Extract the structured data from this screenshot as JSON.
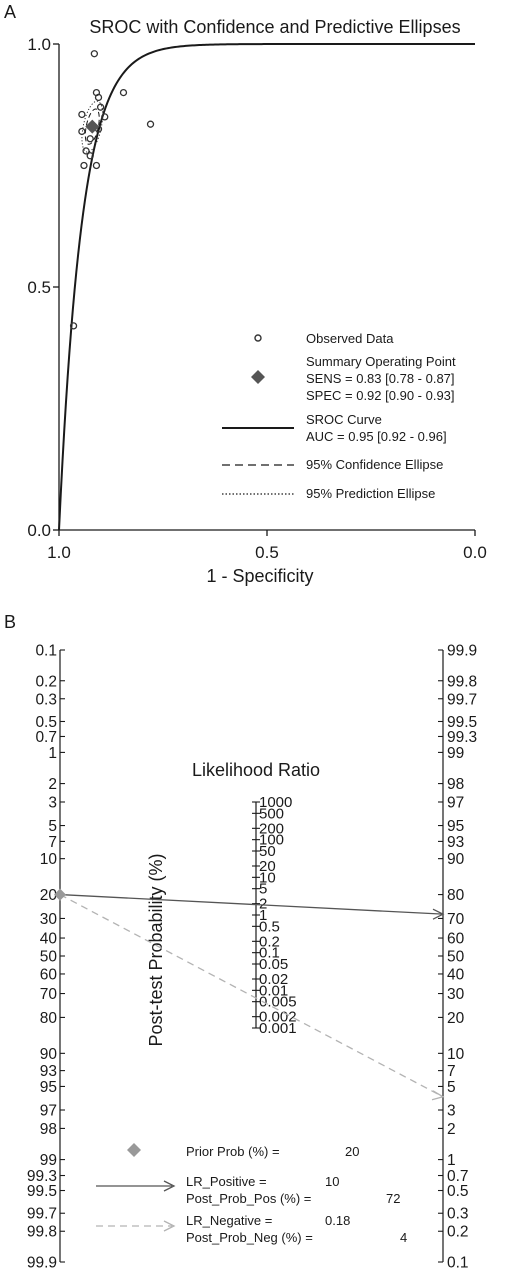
{
  "panels": {
    "a": {
      "letter": "A"
    },
    "b": {
      "letter": "B"
    }
  },
  "chart_data": [
    {
      "type": "scatter",
      "title": "SROC with Confidence and Predictive Ellipses",
      "xlabel": "1 - Specificity",
      "ylabel": "",
      "xlim": [
        1.0,
        0.0
      ],
      "ylim": [
        0.0,
        1.0
      ],
      "x_reversed": true,
      "x_tick_labels": [
        "1.0",
        "0.5",
        "0.0"
      ],
      "y_tick_labels": [
        "0.0",
        "0.5",
        "1.0"
      ],
      "grid": false,
      "legend_position": "bottom-right",
      "observed_data": [
        {
          "x": 0.915,
          "y": 0.98
        },
        {
          "x": 0.91,
          "y": 0.9
        },
        {
          "x": 0.845,
          "y": 0.9
        },
        {
          "x": 0.905,
          "y": 0.89
        },
        {
          "x": 0.9,
          "y": 0.87
        },
        {
          "x": 0.945,
          "y": 0.855
        },
        {
          "x": 0.89,
          "y": 0.85
        },
        {
          "x": 0.78,
          "y": 0.835
        },
        {
          "x": 0.905,
          "y": 0.825
        },
        {
          "x": 0.945,
          "y": 0.82
        },
        {
          "x": 0.925,
          "y": 0.805
        },
        {
          "x": 0.935,
          "y": 0.78
        },
        {
          "x": 0.925,
          "y": 0.77
        },
        {
          "x": 0.91,
          "y": 0.75
        },
        {
          "x": 0.94,
          "y": 0.75
        },
        {
          "x": 0.965,
          "y": 0.42
        }
      ],
      "summary_point": {
        "x": 0.92,
        "y": 0.83
      },
      "sroc_shape_b": 0.055,
      "legend": {
        "observed": "Observed Data",
        "summary_line1": "Summary Operating Point",
        "summary_line2": "SENS = 0.83 [0.78 - 0.87]",
        "summary_line3": "SPEC = 0.92 [0.90 - 0.93]",
        "sroc_line1": "SROC Curve",
        "sroc_line2": "AUC = 0.95 [0.92 - 0.96]",
        "confidence": "95% Confidence Ellipse",
        "prediction": "95% Prediction Ellipse"
      },
      "colors": {
        "curve": "#1a1a1a",
        "summary": "#555555",
        "points": "#333333"
      }
    },
    {
      "type": "nomogram",
      "title": "",
      "left_axis_label": "",
      "middle_axis_title": "Likelihood Ratio",
      "right_axis_label": "Post-test Probability (%)",
      "left_ticks": [
        "0.1",
        "0.2",
        "0.3",
        "0.5",
        "0.7",
        "1",
        "2",
        "3",
        "5",
        "7",
        "10",
        "20",
        "30",
        "40",
        "50",
        "60",
        "70",
        "80",
        "90",
        "93",
        "95",
        "97",
        "98",
        "99",
        "99.3",
        "99.5",
        "99.7",
        "99.8",
        "99.9"
      ],
      "right_ticks": [
        "99.9",
        "99.8",
        "99.7",
        "99.5",
        "99.3",
        "99",
        "98",
        "97",
        "95",
        "93",
        "90",
        "80",
        "70",
        "60",
        "50",
        "40",
        "30",
        "20",
        "10",
        "7",
        "5",
        "3",
        "2",
        "1",
        "0.7",
        "0.5",
        "0.3",
        "0.2",
        "0.1"
      ],
      "middle_ticks": [
        "1000",
        "500",
        "200",
        "100",
        "50",
        "20",
        "10",
        "5",
        "2",
        "1",
        "0.5",
        "0.2",
        "0.1",
        "0.05",
        "0.02",
        "0.01",
        "0.005",
        "0.002",
        "0.001"
      ],
      "prior_prob": 20,
      "lr_positive": 10,
      "post_prob_pos": 72,
      "lr_negative": 0.18,
      "post_prob_neg": 4,
      "legend": {
        "prior_label": "Prior Prob (%) =",
        "prior_value": "20",
        "lr_pos_label": "LR_Positive =",
        "lr_pos_value": "10",
        "post_pos_label": "Post_Prob_Pos (%) =",
        "post_pos_value": "72",
        "lr_neg_label": "LR_Negative =",
        "lr_neg_value": "0.18",
        "post_neg_label": "Post_Prob_Neg (%) =",
        "post_neg_value": "4"
      },
      "colors": {
        "positive": "#555555",
        "negative": "#b3b3b3",
        "prior": "#999999"
      }
    }
  ]
}
